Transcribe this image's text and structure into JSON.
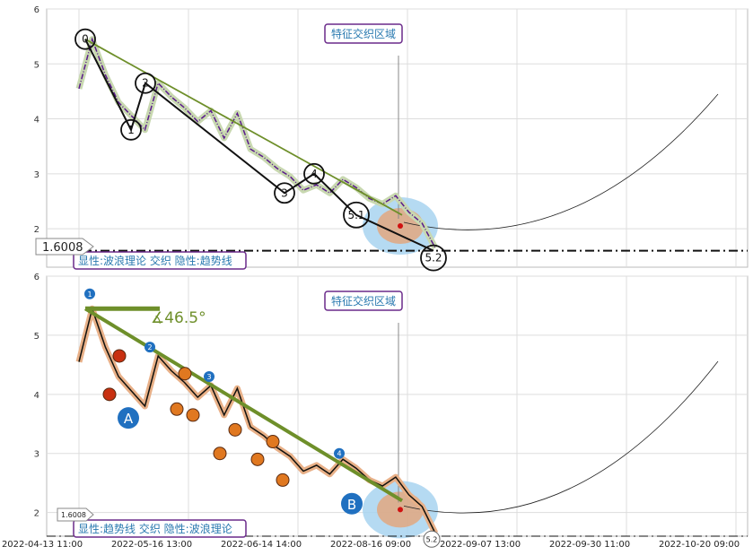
{
  "chart_data": [
    {
      "type": "line",
      "panel": "upper",
      "ylim": [
        1.3,
        6.0
      ],
      "y_ticks": [
        "6",
        "5",
        "4",
        "3",
        "2"
      ],
      "y_tick_values": [
        6,
        5,
        4,
        3,
        2
      ],
      "series": [
        {
          "values": [
            4.55,
            5.45,
            4.8,
            4.3,
            4.05,
            3.8,
            4.65,
            4.4,
            4.2,
            3.95,
            4.15,
            3.65,
            4.1,
            3.45,
            3.3,
            3.1,
            2.95,
            2.7,
            2.8,
            2.65,
            2.9,
            2.75,
            2.55,
            2.45,
            2.6,
            2.3,
            2.1,
            1.65
          ]
        }
      ],
      "wave_points": [
        {
          "label": "0",
          "value": 5.45
        },
        {
          "label": "1",
          "value": 3.8
        },
        {
          "label": "2",
          "value": 4.65
        },
        {
          "label": "3",
          "value": 2.65
        },
        {
          "label": "4",
          "value": 3.0
        },
        {
          "label": "5.1",
          "value": 2.25
        },
        {
          "label": "5.2",
          "value": 1.6
        }
      ],
      "reference_line": {
        "label": "1.6008",
        "value": 1.6008
      },
      "annotation_box": "特征交织区域",
      "legend_text": "显性:波浪理论 交织 隐性:趋势线"
    },
    {
      "type": "line",
      "panel": "lower",
      "ylim": [
        1.6,
        6.0
      ],
      "y_ticks": [
        "6",
        "5",
        "4",
        "3",
        "2"
      ],
      "y_tick_values": [
        6,
        5,
        4,
        3,
        2
      ],
      "series": [
        {
          "values": [
            4.55,
            5.45,
            4.8,
            4.3,
            4.05,
            3.8,
            4.65,
            4.4,
            4.2,
            3.95,
            4.15,
            3.65,
            4.1,
            3.45,
            3.3,
            3.1,
            2.95,
            2.7,
            2.8,
            2.65,
            2.9,
            2.75,
            2.55,
            2.45,
            2.6,
            2.3,
            2.1,
            1.65
          ]
        }
      ],
      "angle_label": "∡46.5°",
      "point_labels": [
        "A",
        "B",
        "1",
        "2",
        "3",
        "4",
        "5.2"
      ],
      "reference_line": {
        "label": "1.6008",
        "value": 1.6008
      },
      "annotation_box": "特征交织区域",
      "legend_text": "显性:趋势线 交织 隐性:波浪理论"
    }
  ],
  "x_axis_labels": [
    "2022-04-13 11:00",
    "2022-05-16 13:00",
    "2022-06-14 14:00",
    "2022-08-16 09:00",
    "2022-09-07 13:00",
    "2022-09-30 11:00",
    "2022-10-20 09:00"
  ],
  "colors": {
    "price_line": "#5a1a8c",
    "trend_green": "#6e8f2a",
    "wave_black": "#111111",
    "legend_border": "#6a2a8a",
    "legend_text": "#2a7ab0",
    "orange_marker": "#e07820",
    "red_marker": "#c83010",
    "blue_marker": "#2070c0",
    "focus_blue": "#a8d4f0",
    "focus_orange": "#e8a070"
  }
}
